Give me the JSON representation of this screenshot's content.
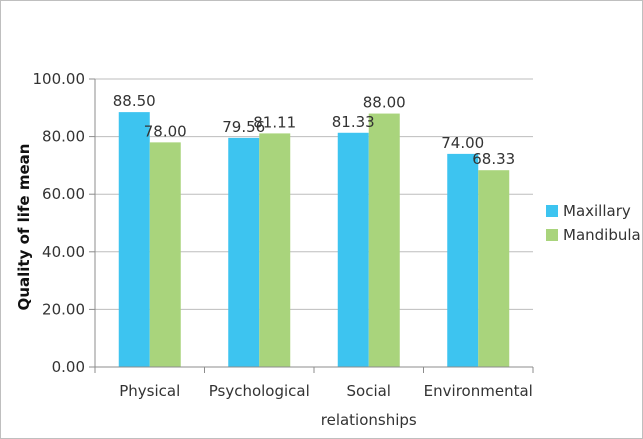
{
  "chart_data": {
    "type": "bar",
    "categories": [
      [
        "Physical"
      ],
      [
        "Psychological"
      ],
      [
        "Social",
        "relationships"
      ],
      [
        "Environmental"
      ]
    ],
    "series": [
      {
        "name": "Maxillary",
        "color": "#3dc4f0",
        "values": [
          88.5,
          79.56,
          81.33,
          74.0
        ],
        "labels": [
          "88.50",
          "79.56",
          "81.33",
          "74.00"
        ]
      },
      {
        "name": "Mandibular",
        "color": "#a9d47c",
        "values": [
          78.0,
          81.11,
          88.0,
          68.33
        ],
        "labels": [
          "78.00",
          "81.11",
          "88.00",
          "68.33"
        ]
      }
    ],
    "title": "",
    "xlabel": "",
    "ylabel": "Quality of life mean",
    "ylim": [
      0,
      100
    ],
    "yticks": [
      "0.00",
      "20.00",
      "40.00",
      "60.00",
      "80.00",
      "100.00"
    ],
    "grid": true,
    "legend_position": "right"
  }
}
